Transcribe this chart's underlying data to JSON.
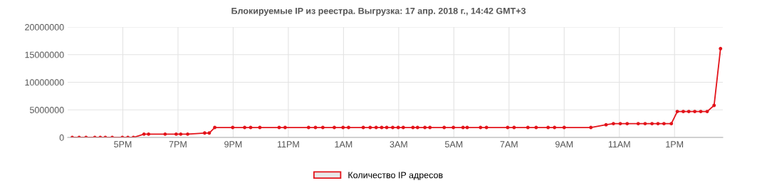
{
  "chart_data": {
    "type": "line",
    "title": "Блокируемые IP из реестра. Выгрузка: 17 апр. 2018 г., 14:42 GMT+3",
    "x": [
      "2018-04-16T15:10",
      "2018-04-16T15:25",
      "2018-04-16T15:40",
      "2018-04-16T15:59",
      "2018-04-16T16:11",
      "2018-04-16T16:22",
      "2018-04-16T16:37",
      "2018-04-16T16:59",
      "2018-04-16T17:11",
      "2018-04-16T17:23",
      "2018-04-16T17:46",
      "2018-04-16T17:56",
      "2018-04-16T18:32",
      "2018-04-16T18:56",
      "2018-04-16T19:06",
      "2018-04-16T19:21",
      "2018-04-16T19:58",
      "2018-04-16T20:08",
      "2018-04-16T20:20",
      "2018-04-16T20:59",
      "2018-04-16T21:25",
      "2018-04-16T21:38",
      "2018-04-16T21:58",
      "2018-04-16T22:40",
      "2018-04-16T22:53",
      "2018-04-16T23:44",
      "2018-04-16T23:59",
      "2018-04-17T00:15",
      "2018-04-17T00:40",
      "2018-04-17T00:59",
      "2018-04-17T01:11",
      "2018-04-17T01:43",
      "2018-04-17T01:58",
      "2018-04-17T02:11",
      "2018-04-17T02:23",
      "2018-04-17T02:34",
      "2018-04-17T02:47",
      "2018-04-17T02:59",
      "2018-04-17T03:10",
      "2018-04-17T03:31",
      "2018-04-17T03:41",
      "2018-04-17T03:57",
      "2018-04-17T04:08",
      "2018-04-17T04:39",
      "2018-04-17T04:59",
      "2018-04-17T05:20",
      "2018-04-17T05:29",
      "2018-04-17T05:58",
      "2018-04-17T06:11",
      "2018-04-17T06:57",
      "2018-04-17T07:11",
      "2018-04-17T07:41",
      "2018-04-17T07:59",
      "2018-04-17T08:25",
      "2018-04-17T08:39",
      "2018-04-17T09:00",
      "2018-04-17T09:58",
      "2018-04-17T10:31",
      "2018-04-17T10:47",
      "2018-04-17T11:02",
      "2018-04-17T11:17",
      "2018-04-17T11:41",
      "2018-04-17T11:56",
      "2018-04-17T12:11",
      "2018-04-17T12:24",
      "2018-04-17T12:37",
      "2018-04-17T12:53",
      "2018-04-17T13:06",
      "2018-04-17T13:19",
      "2018-04-17T13:31",
      "2018-04-17T13:44",
      "2018-04-17T13:57",
      "2018-04-17T14:11",
      "2018-04-17T14:26",
      "2018-04-17T14:40"
    ],
    "series": [
      {
        "name": "Количество IP адресов",
        "color": "#e3141b",
        "values": [
          0,
          0,
          0,
          0,
          0,
          0,
          0,
          0,
          0,
          0,
          600000,
          600000,
          600000,
          600000,
          600000,
          600000,
          800000,
          800000,
          1800000,
          1800000,
          1800000,
          1800000,
          1800000,
          1800000,
          1800000,
          1800000,
          1800000,
          1800000,
          1800000,
          1800000,
          1800000,
          1800000,
          1800000,
          1800000,
          1800000,
          1800000,
          1800000,
          1800000,
          1800000,
          1800000,
          1800000,
          1800000,
          1800000,
          1800000,
          1800000,
          1800000,
          1800000,
          1800000,
          1800000,
          1800000,
          1800000,
          1800000,
          1800000,
          1800000,
          1800000,
          1800000,
          1800000,
          2300000,
          2500000,
          2500000,
          2500000,
          2500000,
          2500000,
          2500000,
          2500000,
          2500000,
          2500000,
          4700000,
          4700000,
          4700000,
          4700000,
          4700000,
          4700000,
          5800000,
          16100000
        ]
      }
    ],
    "xlim": [
      "2018-04-16T15:00",
      "2018-04-17T14:45"
    ],
    "xticks": [
      {
        "value": "2018-04-16T17:00",
        "label": "5PM"
      },
      {
        "value": "2018-04-16T19:00",
        "label": "7PM"
      },
      {
        "value": "2018-04-16T21:00",
        "label": "9PM"
      },
      {
        "value": "2018-04-16T23:00",
        "label": "11PM"
      },
      {
        "value": "2018-04-17T01:00",
        "label": "1AM"
      },
      {
        "value": "2018-04-17T03:00",
        "label": "3AM"
      },
      {
        "value": "2018-04-17T05:00",
        "label": "5AM"
      },
      {
        "value": "2018-04-17T07:00",
        "label": "7AM"
      },
      {
        "value": "2018-04-17T09:00",
        "label": "9AM"
      },
      {
        "value": "2018-04-17T11:00",
        "label": "11AM"
      },
      {
        "value": "2018-04-17T13:00",
        "label": "1PM"
      }
    ],
    "ylim": [
      0,
      20000000
    ],
    "yticks": [
      0,
      5000000,
      10000000,
      15000000,
      20000000
    ],
    "grid": true,
    "legend": "bottom",
    "marker": "circle",
    "line_style": "solid"
  }
}
